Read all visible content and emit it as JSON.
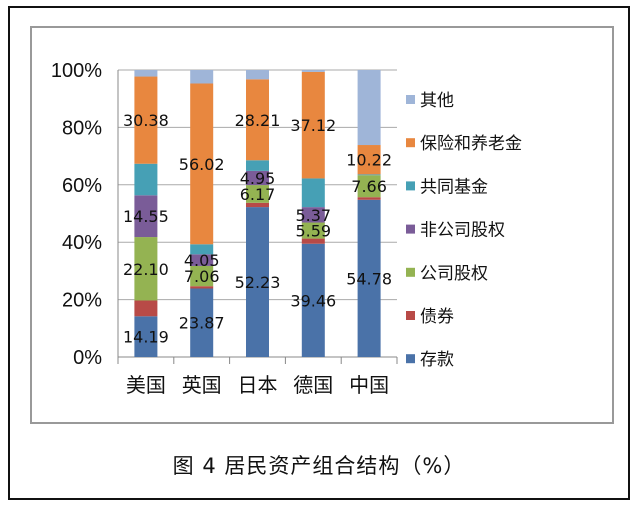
{
  "chart_data": {
    "type": "bar",
    "stacked": "percent",
    "title": "图 4  居民资产组合结构（%）",
    "categories": [
      "美国",
      "英国",
      "日本",
      "德国",
      "中国"
    ],
    "ylim": [
      0,
      100
    ],
    "yticks": [
      "0%",
      "20%",
      "40%",
      "60%",
      "80%",
      "100%"
    ],
    "grid": true,
    "legend_position": "right",
    "series": [
      {
        "name": "存款",
        "color": "#4a72a8",
        "values": [
          14.19,
          23.87,
          52.23,
          39.46,
          54.78
        ],
        "labels": [
          "14.19",
          "23.87",
          "52.23",
          "39.46",
          "54.78"
        ]
      },
      {
        "name": "债券",
        "color": "#b84a47",
        "values": [
          5.5,
          0.8,
          1.5,
          1.8,
          0.9
        ],
        "labels": [
          "",
          "",
          "",
          "",
          ""
        ]
      },
      {
        "name": "公司股权",
        "color": "#94b352",
        "values": [
          22.1,
          7.06,
          6.17,
          5.59,
          7.66
        ],
        "labels": [
          "22.10",
          "7.06",
          "6.17",
          "5.59",
          "7.66"
        ]
      },
      {
        "name": "非公司股权",
        "color": "#7a5c98",
        "values": [
          14.55,
          4.05,
          4.95,
          5.37,
          0
        ],
        "labels": [
          "14.55",
          "4.05",
          "4.95",
          "5.37",
          ""
        ]
      },
      {
        "name": "共同基金",
        "color": "#46a0b5",
        "values": [
          11.0,
          3.5,
          3.7,
          10.0,
          0.3
        ],
        "labels": [
          "",
          "",
          "",
          "",
          ""
        ]
      },
      {
        "name": "保险和养老金",
        "color": "#e8873f",
        "values": [
          30.38,
          56.02,
          28.21,
          37.12,
          10.22
        ],
        "labels": [
          "30.38",
          "56.02",
          "28.21",
          "37.12",
          "10.22"
        ]
      },
      {
        "name": "其他",
        "color": "#9fb5d8",
        "values": [
          2.28,
          4.7,
          3.24,
          0.66,
          26.14
        ],
        "labels": [
          "",
          "",
          "",
          "",
          ""
        ]
      }
    ]
  }
}
